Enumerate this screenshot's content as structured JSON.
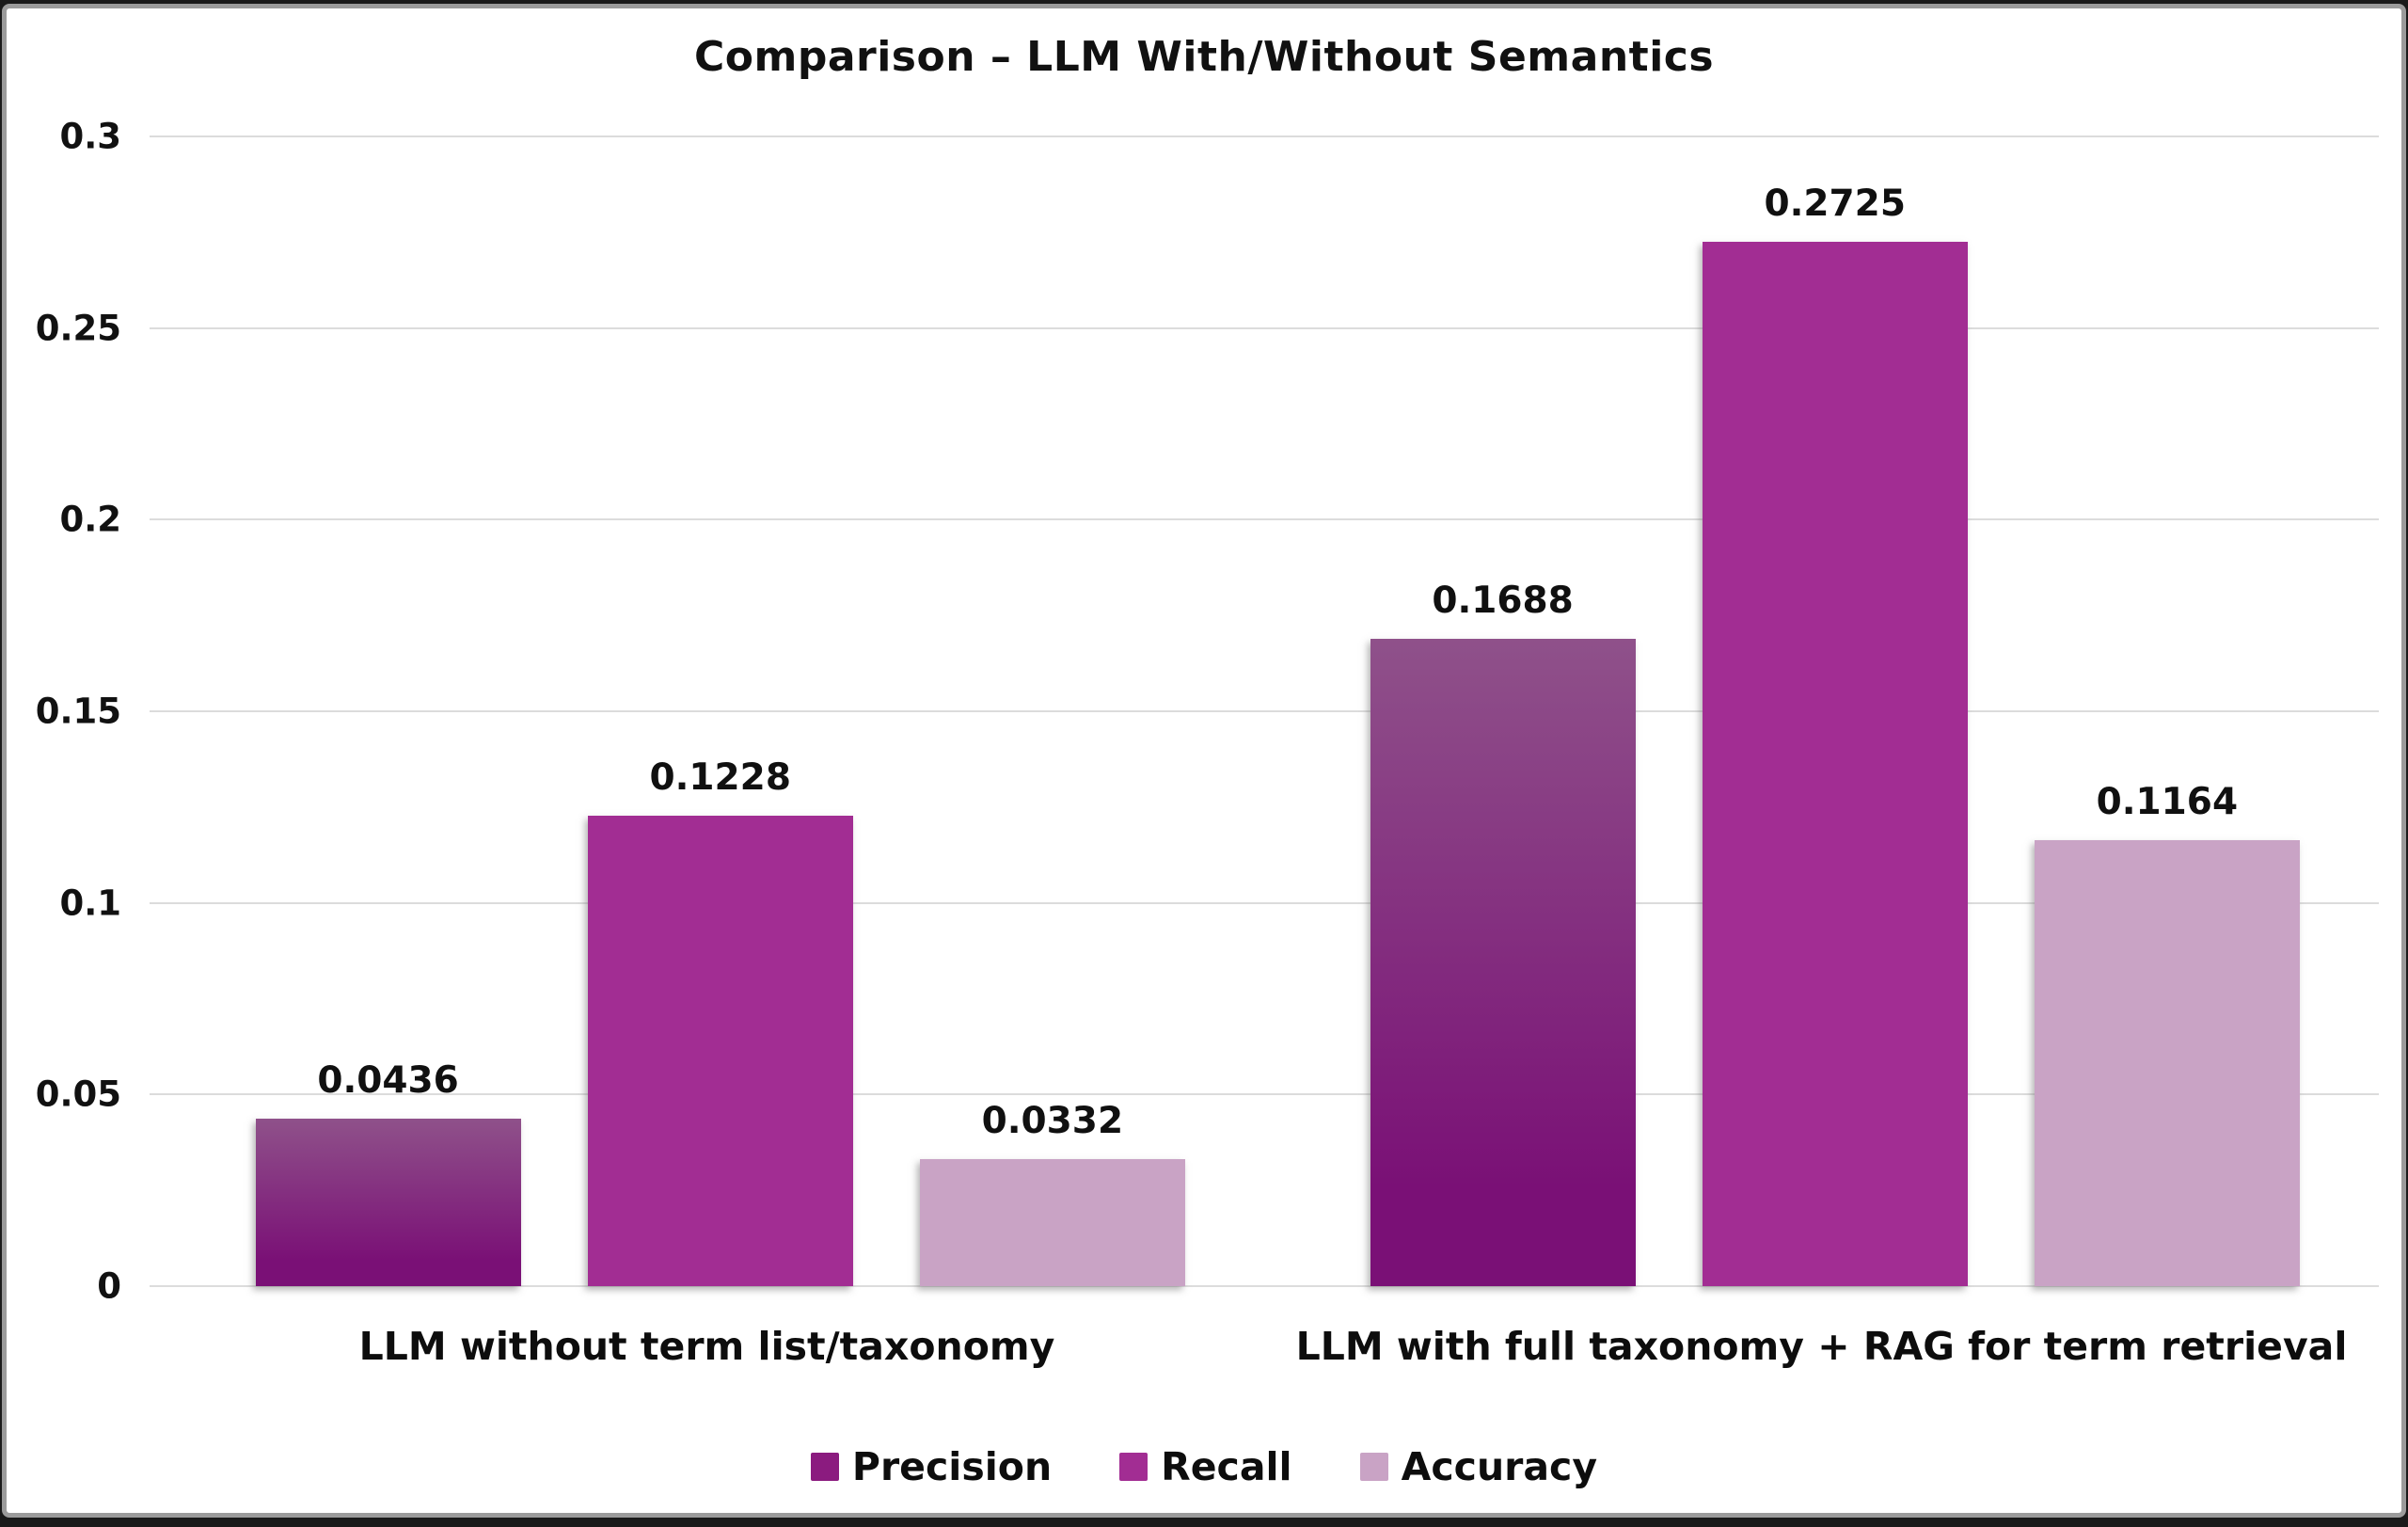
{
  "chart_data": {
    "type": "bar",
    "title": "Comparison – LLM With/Without Semantics",
    "categories": [
      "LLM without term list/taxonomy",
      "LLM with full taxonomy + RAG for term retrieval"
    ],
    "series": [
      {
        "name": "Precision",
        "values": [
          0.0436,
          0.1688
        ],
        "labels": [
          "0.0436",
          "0.1688"
        ],
        "color": "#8b1b7f",
        "gradient": [
          "#8f518a",
          "#7a1076"
        ]
      },
      {
        "name": "Recall",
        "values": [
          0.1228,
          0.2725
        ],
        "labels": [
          "0.1228",
          "0.2725"
        ],
        "color": "#a22d93"
      },
      {
        "name": "Accuracy",
        "values": [
          0.0332,
          0.1164
        ],
        "labels": [
          "0.0332",
          "0.1164"
        ],
        "color": "#c9a3c5"
      }
    ],
    "ylim": [
      0,
      0.3
    ],
    "yticks": [
      {
        "label": "0.3",
        "value": 0.3
      },
      {
        "label": "0.25",
        "value": 0.25
      },
      {
        "label": "0.2",
        "value": 0.2
      },
      {
        "label": "0.15",
        "value": 0.15
      },
      {
        "label": "0.1",
        "value": 0.1
      },
      {
        "label": "0.05",
        "value": 0.05
      },
      {
        "label": "0",
        "value": 0.0
      }
    ],
    "grid": "horizontal",
    "legend_position": "bottom",
    "colors": {
      "gridline": "#dcdcdc",
      "text": "#111111",
      "background": "#ffffff",
      "frame_border": "#9b9b9b"
    }
  }
}
